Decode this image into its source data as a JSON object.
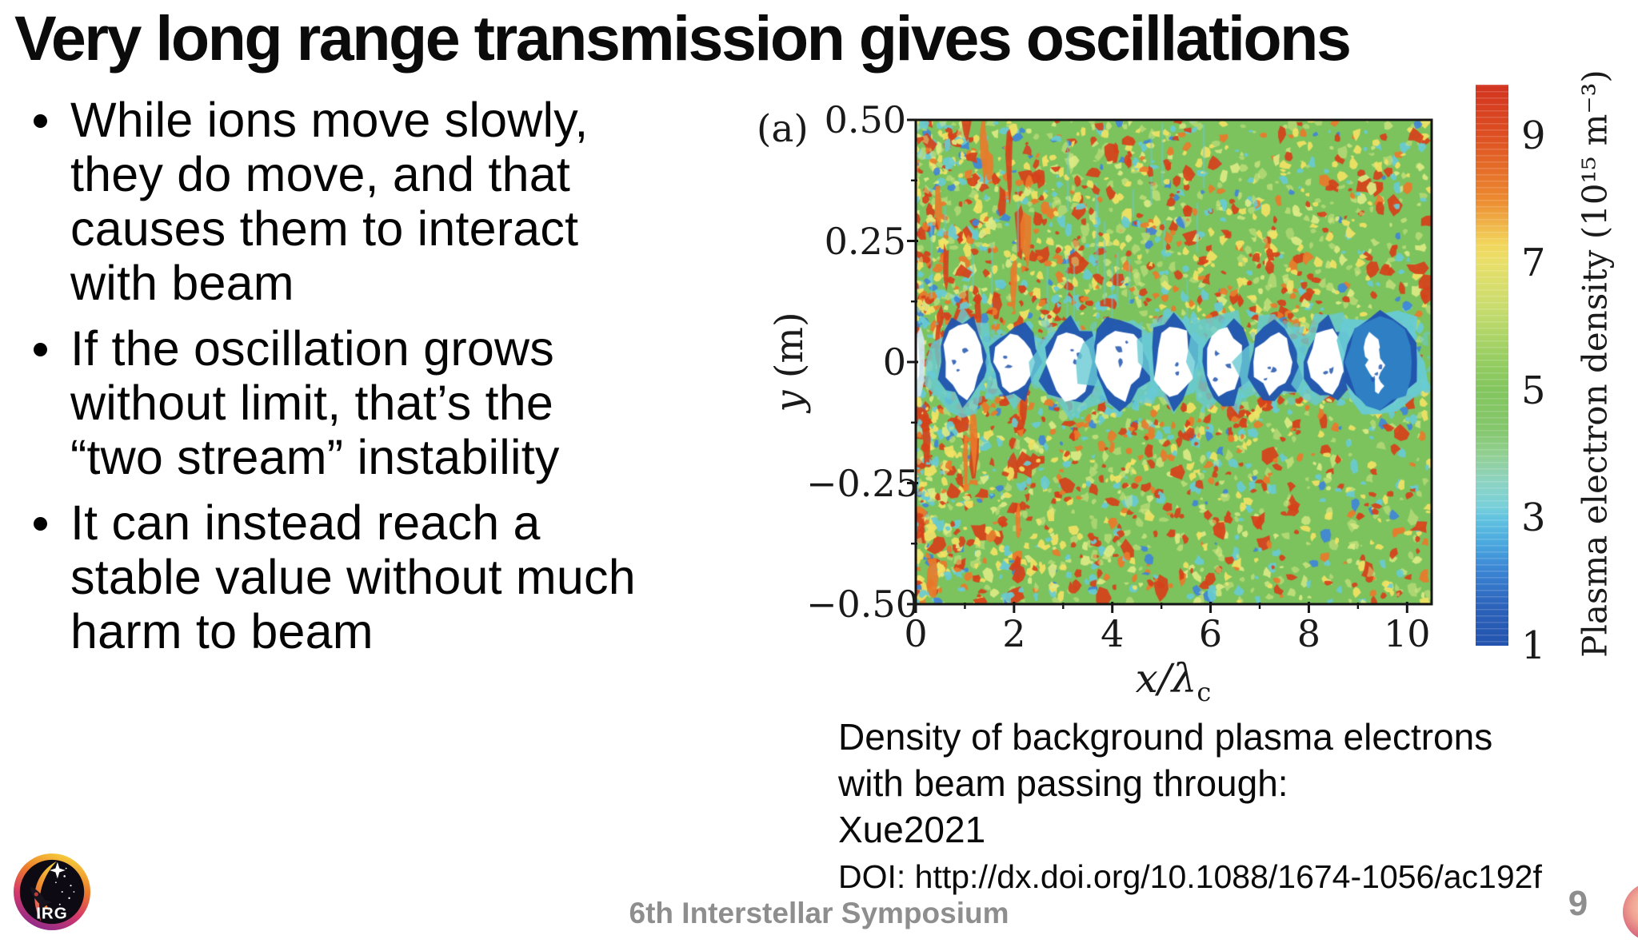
{
  "slide": {
    "title": "Very long range transmission gives oscillations",
    "bullets": [
      {
        "lines": [
          "While ions move slowly,",
          "they do move, and that",
          "causes them to interact",
          "with beam"
        ]
      },
      {
        "lines": [
          "If the oscillation grows",
          "without limit, that’s the",
          "“two stream” instability"
        ]
      },
      {
        "lines": [
          "It can instead reach a",
          "stable value without much",
          "harm to beam"
        ]
      }
    ],
    "caption_lines": [
      "Density of background plasma electrons",
      "with beam passing through:",
      "Xue2021",
      "DOI: http://dx.doi.org/10.1088/1674-1056/ac192f"
    ],
    "footer": {
      "center": "6th Interstellar Symposium",
      "page": "9"
    },
    "logo_text": "IRG"
  },
  "figure": {
    "panel_label": "(a)",
    "x_axis": {
      "label_main": "x/λ",
      "label_sub": "c",
      "range": [
        0,
        10.5
      ],
      "ticks": [
        {
          "value": 0,
          "label": "0"
        },
        {
          "value": 2,
          "label": "2"
        },
        {
          "value": 4,
          "label": "4"
        },
        {
          "value": 6,
          "label": "6"
        },
        {
          "value": 8,
          "label": "8"
        },
        {
          "value": 10,
          "label": "10"
        }
      ],
      "minor_ticks": [
        1,
        3,
        5,
        7,
        9
      ]
    },
    "y_axis": {
      "label_var": "y",
      "label_unit": " (m)",
      "range": [
        -0.5,
        0.5
      ],
      "ticks": [
        {
          "value": 0.5,
          "label": "0.50"
        },
        {
          "value": 0.25,
          "label": "0.25"
        },
        {
          "value": 0,
          "label": "0"
        },
        {
          "value": -0.25,
          "label": "−0.25"
        },
        {
          "value": -0.5,
          "label": "−0.50"
        }
      ],
      "minor_ticks": [
        0.375,
        0.125,
        -0.125,
        -0.375
      ]
    },
    "colorbar": {
      "label": "Plasma electron density (10¹⁵ m⁻³)",
      "range": [
        1,
        9.8
      ],
      "ticks": [
        {
          "value": 9,
          "label": "9"
        },
        {
          "value": 7,
          "label": "7"
        },
        {
          "value": 5,
          "label": "5"
        },
        {
          "value": 3,
          "label": "3"
        },
        {
          "value": 1,
          "label": "1"
        }
      ],
      "gradient": [
        [
          0,
          "#d23420"
        ],
        [
          0.09,
          "#dd4f22"
        ],
        [
          0.205,
          "#ec8a30"
        ],
        [
          0.284,
          "#f2d65c"
        ],
        [
          0.318,
          "#e8df6a"
        ],
        [
          0.398,
          "#c8dc6e"
        ],
        [
          0.489,
          "#97ce62"
        ],
        [
          0.545,
          "#83c55e"
        ],
        [
          0.614,
          "#84c76c"
        ],
        [
          0.659,
          "#92cf92"
        ],
        [
          0.705,
          "#8ed3c0"
        ],
        [
          0.75,
          "#79d0d8"
        ],
        [
          0.773,
          "#62c3e0"
        ],
        [
          0.818,
          "#4aa8de"
        ],
        [
          0.864,
          "#3c86d4"
        ],
        [
          0.932,
          "#2c62ba"
        ],
        [
          1,
          "#2353ae"
        ]
      ]
    }
  },
  "chart_data": {
    "type": "heatmap",
    "panel": "(a)",
    "xlabel": "x/λ_c",
    "ylabel": "y (m)",
    "x_range": [
      0,
      10.5
    ],
    "y_range": [
      -0.5,
      0.5
    ],
    "x_ticks": [
      0,
      2,
      4,
      6,
      8,
      10
    ],
    "y_ticks": [
      0.5,
      0.25,
      0,
      -0.25,
      -0.5
    ],
    "colorbar_label": "Plasma electron density (10^15 m^-3)",
    "colorbar_ticks": [
      9,
      7,
      5,
      3,
      1
    ],
    "colorbar_range": [
      1,
      9.8
    ],
    "background_density_1e15_m3": 5,
    "beam_bubbles_x_lambda": [
      0.95,
      2.0,
      3.15,
      4.15,
      5.25,
      6.25,
      7.3,
      8.4
    ],
    "beam_head_x_lambda": 9.45,
    "bubble_half_height_m": 0.07,
    "palette": {
      "base": "#7cc35e",
      "pale_yellow": "#dcea84",
      "yellow": "#f2e364",
      "orange": "#ea7a2a",
      "red": "#d6401a",
      "cyan": "#68cbd4",
      "blue": "#3f86d8",
      "dark_blue": "#2155ae",
      "bubble_white": "#ffffff",
      "head_blue": "#2e7fc4"
    }
  }
}
